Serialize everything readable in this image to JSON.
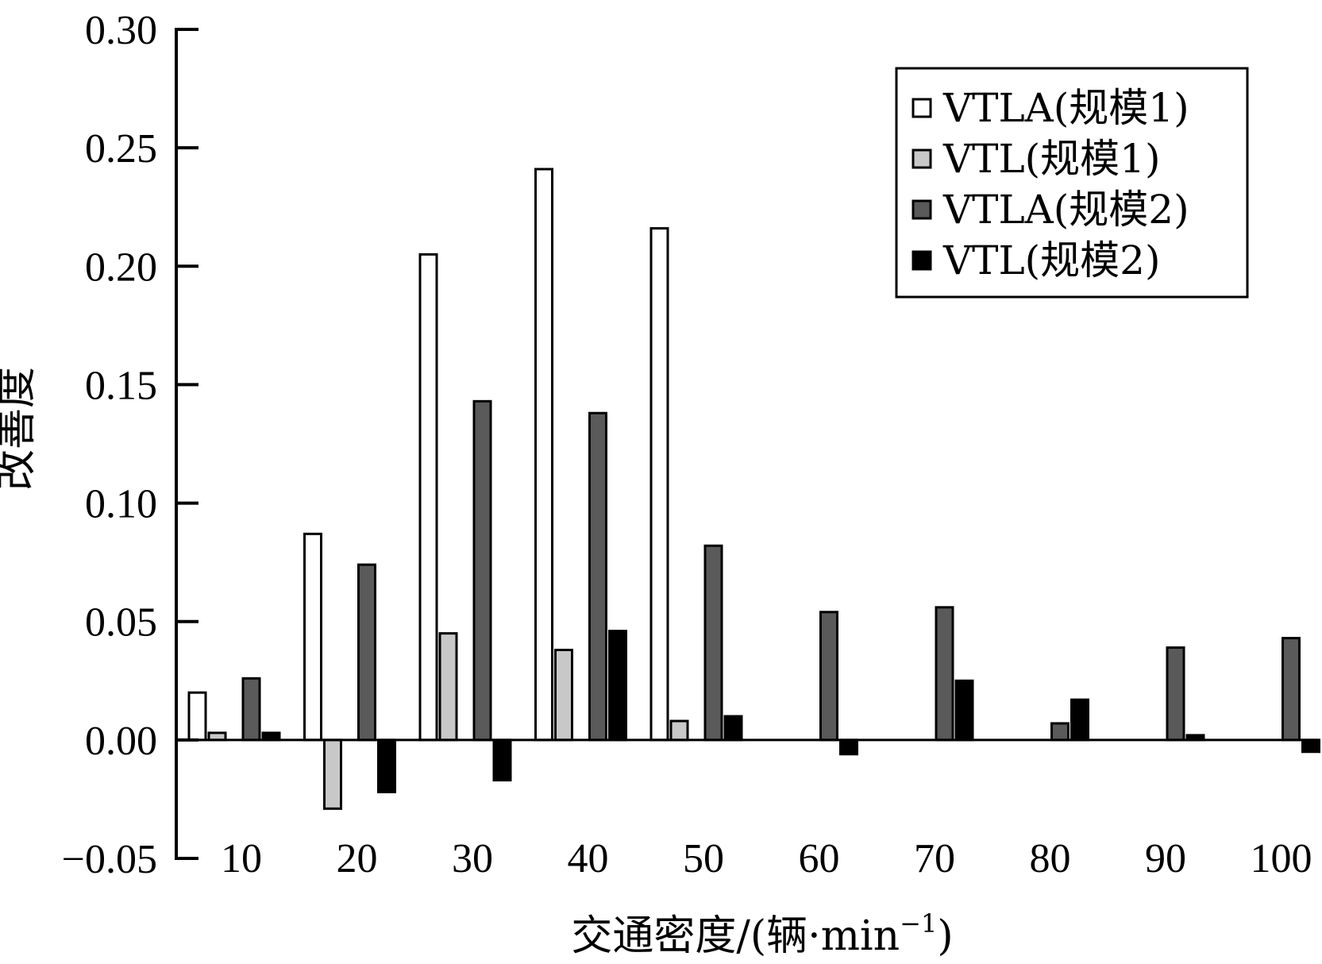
{
  "chart_data": {
    "type": "bar",
    "xlabel": "交通密度/(辆·min",
    "xlabel_superscript": "−1",
    "xlabel_suffix": ")",
    "ylabel": "改善度",
    "ylim": [
      -0.05,
      0.3
    ],
    "yticks": [
      "−0.05",
      "0.00",
      "0.05",
      "0.10",
      "0.15",
      "0.20",
      "0.25",
      "0.30"
    ],
    "ytick_values": [
      -0.05,
      0.0,
      0.05,
      0.1,
      0.15,
      0.2,
      0.25,
      0.3
    ],
    "categories": [
      "10",
      "20",
      "30",
      "40",
      "50",
      "60",
      "70",
      "80",
      "90",
      "100"
    ],
    "legend_position": "top-right",
    "series": [
      {
        "name": "VTLA(规模1)",
        "color": "#ffffff",
        "values": [
          0.02,
          0.087,
          0.205,
          0.241,
          0.216,
          0,
          0,
          0,
          0,
          0
        ]
      },
      {
        "name": "VTL(规模1)",
        "color": "#c8c8c8",
        "values": [
          0.003,
          -0.029,
          0.045,
          0.038,
          0.008,
          0,
          0,
          0,
          0,
          0
        ]
      },
      {
        "name": "VTLA(规模2)",
        "color": "#5a5a5a",
        "values": [
          0.026,
          0.074,
          0.143,
          0.138,
          0.082,
          0.054,
          0.056,
          0.007,
          0.039,
          0.043
        ]
      },
      {
        "name": "VTL(规模2)",
        "color": "#000000",
        "values": [
          0.003,
          -0.022,
          -0.017,
          0.046,
          0.01,
          -0.006,
          0.025,
          0.017,
          0.002,
          -0.005
        ]
      }
    ]
  }
}
